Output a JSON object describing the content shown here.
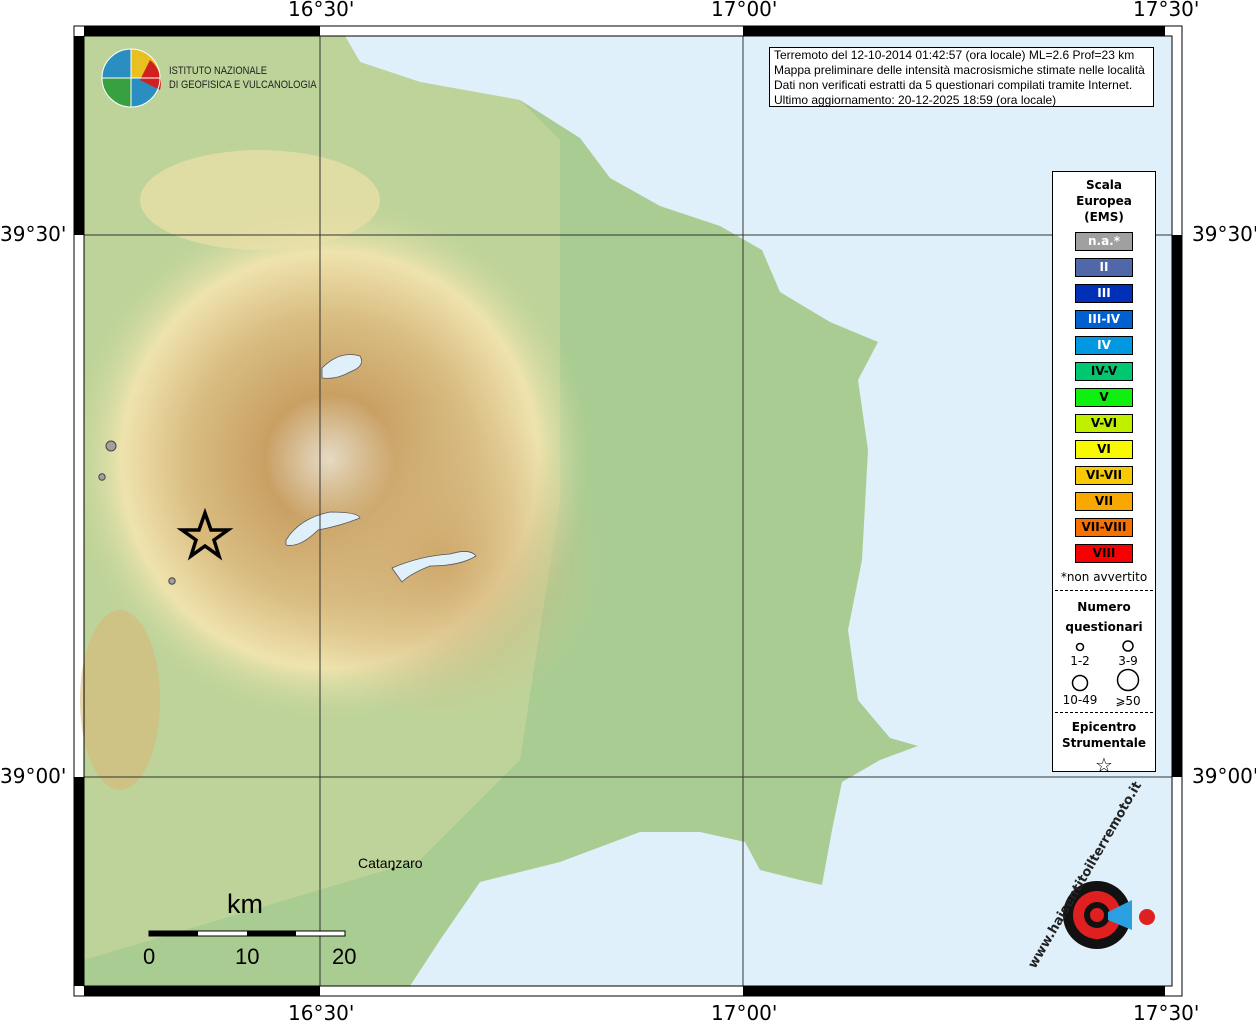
{
  "axes": {
    "top_labels": [
      "16°30'",
      "17°00'",
      "17°30'"
    ],
    "bottom_labels": [
      "16°30'",
      "17°00'",
      "17°30'"
    ],
    "left_labels": [
      "39°30'",
      "39°00'"
    ],
    "right_labels": [
      "39°30'",
      "39°00'"
    ]
  },
  "logo": {
    "line1": "ISTITUTO NAZIONALE",
    "line2": "DI GEOFISICA E VULCANOLOGIA"
  },
  "info": {
    "line1": "Terremoto del 12-10-2014 01:42:57 (ora locale) ML=2.6 Prof=23 km",
    "line2": "Mappa preliminare delle intensità macrosismiche stimate nelle località",
    "line3": "Dati non verificati estratti da 5 questionari compilati tramite Internet.",
    "line4": "Ultimo aggiornamento: 20-12-2025 18:59 (ora locale)"
  },
  "legend": {
    "title1": "Scala",
    "title2": "Europea",
    "title3": "(EMS)",
    "scale": [
      {
        "label": "n.a.*",
        "color": "#a0a0a0",
        "text": "#ffffff"
      },
      {
        "label": "II",
        "color": "#5068a8",
        "text": "#ffffff"
      },
      {
        "label": "III",
        "color": "#0030b8",
        "text": "#ffffff"
      },
      {
        "label": "III-IV",
        "color": "#0060d0",
        "text": "#ffffff"
      },
      {
        "label": "IV",
        "color": "#0098e0",
        "text": "#ffffff"
      },
      {
        "label": "IV-V",
        "color": "#00c870",
        "text": "#000000"
      },
      {
        "label": "V",
        "color": "#10f010",
        "text": "#000000"
      },
      {
        "label": "V-VI",
        "color": "#c0f000",
        "text": "#000000"
      },
      {
        "label": "VI",
        "color": "#f8f800",
        "text": "#000000"
      },
      {
        "label": "VI-VII",
        "color": "#f8c800",
        "text": "#000000"
      },
      {
        "label": "VII",
        "color": "#f8a800",
        "text": "#000000"
      },
      {
        "label": "VII-VIII",
        "color": "#f87000",
        "text": "#000000"
      },
      {
        "label": "VIII",
        "color": "#f80000",
        "text": "#000000"
      }
    ],
    "note": "*non avvertito",
    "count_title1": "Numero",
    "count_title2": "questionari",
    "counts": [
      "1-2",
      "3-9",
      "10-49",
      "⩾50"
    ],
    "epi_title1": "Epicentro",
    "epi_title2": "Strumentale"
  },
  "places": [
    {
      "name": "Catanzaro"
    }
  ],
  "scalebar": {
    "unit": "km",
    "ticks": [
      "0",
      "10",
      "20"
    ]
  },
  "points": [
    {
      "intensity": "n.a.*",
      "questionnaires": "3-9"
    },
    {
      "intensity": "n.a.*",
      "questionnaires": "1-2"
    },
    {
      "intensity": "n.a.*",
      "questionnaires": "1-2"
    }
  ],
  "watermark": "www.haisentitoilterremoto.it"
}
